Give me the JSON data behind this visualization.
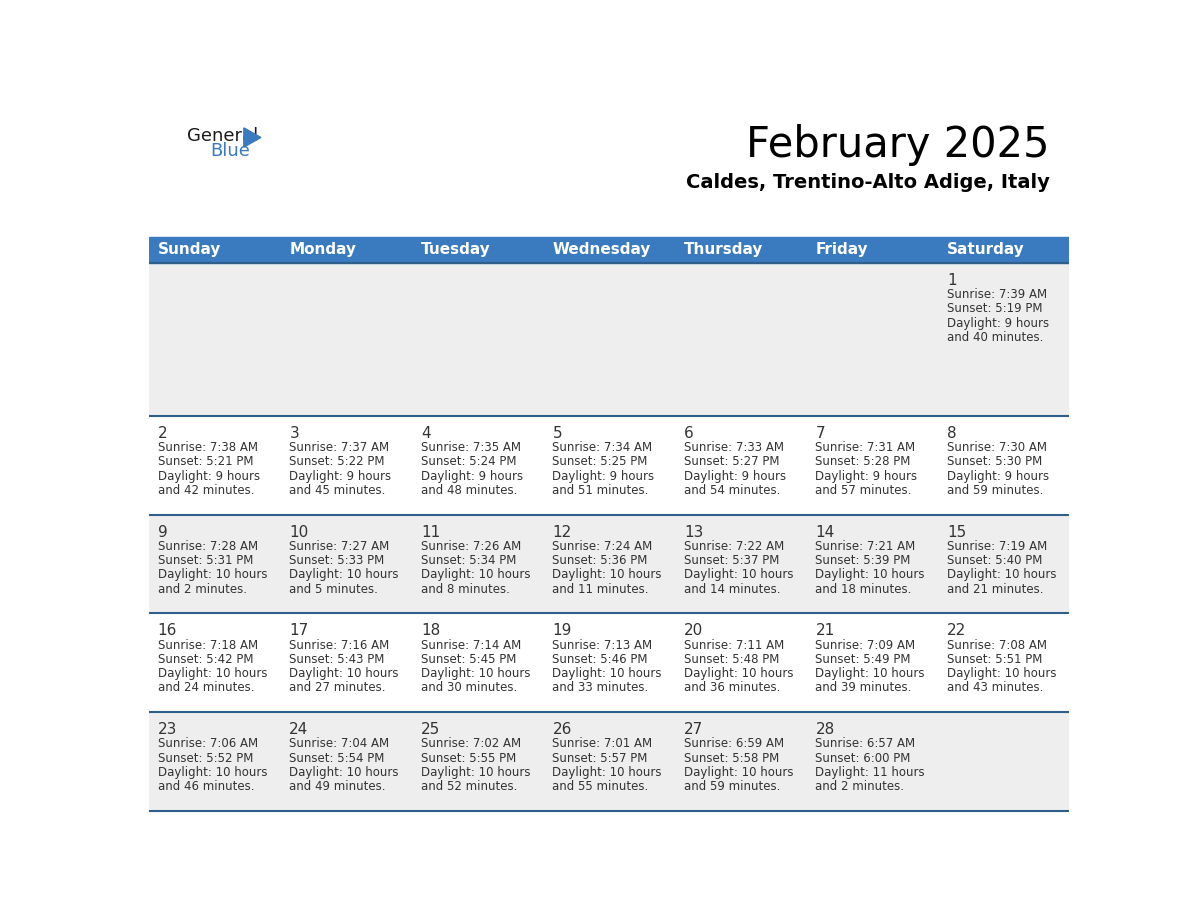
{
  "title": "February 2025",
  "subtitle": "Caldes, Trentino-Alto Adige, Italy",
  "header_bg": "#3a7abf",
  "header_text": "#ffffff",
  "cell_bg_row0": "#eeeeee",
  "cell_bg_row1": "#ffffff",
  "cell_bg_row2": "#eeeeee",
  "cell_bg_row3": "#ffffff",
  "cell_bg_row4": "#eeeeee",
  "day_headers": [
    "Sunday",
    "Monday",
    "Tuesday",
    "Wednesday",
    "Thursday",
    "Friday",
    "Saturday"
  ],
  "days": [
    {
      "day": 1,
      "col": 6,
      "row": 0,
      "sunrise": "7:39 AM",
      "sunset": "5:19 PM",
      "daylight_line1": "Daylight: 9 hours",
      "daylight_line2": "and 40 minutes."
    },
    {
      "day": 2,
      "col": 0,
      "row": 1,
      "sunrise": "7:38 AM",
      "sunset": "5:21 PM",
      "daylight_line1": "Daylight: 9 hours",
      "daylight_line2": "and 42 minutes."
    },
    {
      "day": 3,
      "col": 1,
      "row": 1,
      "sunrise": "7:37 AM",
      "sunset": "5:22 PM",
      "daylight_line1": "Daylight: 9 hours",
      "daylight_line2": "and 45 minutes."
    },
    {
      "day": 4,
      "col": 2,
      "row": 1,
      "sunrise": "7:35 AM",
      "sunset": "5:24 PM",
      "daylight_line1": "Daylight: 9 hours",
      "daylight_line2": "and 48 minutes."
    },
    {
      "day": 5,
      "col": 3,
      "row": 1,
      "sunrise": "7:34 AM",
      "sunset": "5:25 PM",
      "daylight_line1": "Daylight: 9 hours",
      "daylight_line2": "and 51 minutes."
    },
    {
      "day": 6,
      "col": 4,
      "row": 1,
      "sunrise": "7:33 AM",
      "sunset": "5:27 PM",
      "daylight_line1": "Daylight: 9 hours",
      "daylight_line2": "and 54 minutes."
    },
    {
      "day": 7,
      "col": 5,
      "row": 1,
      "sunrise": "7:31 AM",
      "sunset": "5:28 PM",
      "daylight_line1": "Daylight: 9 hours",
      "daylight_line2": "and 57 minutes."
    },
    {
      "day": 8,
      "col": 6,
      "row": 1,
      "sunrise": "7:30 AM",
      "sunset": "5:30 PM",
      "daylight_line1": "Daylight: 9 hours",
      "daylight_line2": "and 59 minutes."
    },
    {
      "day": 9,
      "col": 0,
      "row": 2,
      "sunrise": "7:28 AM",
      "sunset": "5:31 PM",
      "daylight_line1": "Daylight: 10 hours",
      "daylight_line2": "and 2 minutes."
    },
    {
      "day": 10,
      "col": 1,
      "row": 2,
      "sunrise": "7:27 AM",
      "sunset": "5:33 PM",
      "daylight_line1": "Daylight: 10 hours",
      "daylight_line2": "and 5 minutes."
    },
    {
      "day": 11,
      "col": 2,
      "row": 2,
      "sunrise": "7:26 AM",
      "sunset": "5:34 PM",
      "daylight_line1": "Daylight: 10 hours",
      "daylight_line2": "and 8 minutes."
    },
    {
      "day": 12,
      "col": 3,
      "row": 2,
      "sunrise": "7:24 AM",
      "sunset": "5:36 PM",
      "daylight_line1": "Daylight: 10 hours",
      "daylight_line2": "and 11 minutes."
    },
    {
      "day": 13,
      "col": 4,
      "row": 2,
      "sunrise": "7:22 AM",
      "sunset": "5:37 PM",
      "daylight_line1": "Daylight: 10 hours",
      "daylight_line2": "and 14 minutes."
    },
    {
      "day": 14,
      "col": 5,
      "row": 2,
      "sunrise": "7:21 AM",
      "sunset": "5:39 PM",
      "daylight_line1": "Daylight: 10 hours",
      "daylight_line2": "and 18 minutes."
    },
    {
      "day": 15,
      "col": 6,
      "row": 2,
      "sunrise": "7:19 AM",
      "sunset": "5:40 PM",
      "daylight_line1": "Daylight: 10 hours",
      "daylight_line2": "and 21 minutes."
    },
    {
      "day": 16,
      "col": 0,
      "row": 3,
      "sunrise": "7:18 AM",
      "sunset": "5:42 PM",
      "daylight_line1": "Daylight: 10 hours",
      "daylight_line2": "and 24 minutes."
    },
    {
      "day": 17,
      "col": 1,
      "row": 3,
      "sunrise": "7:16 AM",
      "sunset": "5:43 PM",
      "daylight_line1": "Daylight: 10 hours",
      "daylight_line2": "and 27 minutes."
    },
    {
      "day": 18,
      "col": 2,
      "row": 3,
      "sunrise": "7:14 AM",
      "sunset": "5:45 PM",
      "daylight_line1": "Daylight: 10 hours",
      "daylight_line2": "and 30 minutes."
    },
    {
      "day": 19,
      "col": 3,
      "row": 3,
      "sunrise": "7:13 AM",
      "sunset": "5:46 PM",
      "daylight_line1": "Daylight: 10 hours",
      "daylight_line2": "and 33 minutes."
    },
    {
      "day": 20,
      "col": 4,
      "row": 3,
      "sunrise": "7:11 AM",
      "sunset": "5:48 PM",
      "daylight_line1": "Daylight: 10 hours",
      "daylight_line2": "and 36 minutes."
    },
    {
      "day": 21,
      "col": 5,
      "row": 3,
      "sunrise": "7:09 AM",
      "sunset": "5:49 PM",
      "daylight_line1": "Daylight: 10 hours",
      "daylight_line2": "and 39 minutes."
    },
    {
      "day": 22,
      "col": 6,
      "row": 3,
      "sunrise": "7:08 AM",
      "sunset": "5:51 PM",
      "daylight_line1": "Daylight: 10 hours",
      "daylight_line2": "and 43 minutes."
    },
    {
      "day": 23,
      "col": 0,
      "row": 4,
      "sunrise": "7:06 AM",
      "sunset": "5:52 PM",
      "daylight_line1": "Daylight: 10 hours",
      "daylight_line2": "and 46 minutes."
    },
    {
      "day": 24,
      "col": 1,
      "row": 4,
      "sunrise": "7:04 AM",
      "sunset": "5:54 PM",
      "daylight_line1": "Daylight: 10 hours",
      "daylight_line2": "and 49 minutes."
    },
    {
      "day": 25,
      "col": 2,
      "row": 4,
      "sunrise": "7:02 AM",
      "sunset": "5:55 PM",
      "daylight_line1": "Daylight: 10 hours",
      "daylight_line2": "and 52 minutes."
    },
    {
      "day": 26,
      "col": 3,
      "row": 4,
      "sunrise": "7:01 AM",
      "sunset": "5:57 PM",
      "daylight_line1": "Daylight: 10 hours",
      "daylight_line2": "and 55 minutes."
    },
    {
      "day": 27,
      "col": 4,
      "row": 4,
      "sunrise": "6:59 AM",
      "sunset": "5:58 PM",
      "daylight_line1": "Daylight: 10 hours",
      "daylight_line2": "and 59 minutes."
    },
    {
      "day": 28,
      "col": 5,
      "row": 4,
      "sunrise": "6:57 AM",
      "sunset": "6:00 PM",
      "daylight_line1": "Daylight: 11 hours",
      "daylight_line2": "and 2 minutes."
    }
  ],
  "n_rows": 5,
  "n_cols": 7,
  "divider_color": "#2e5f8a",
  "text_color": "#333333",
  "logo_general_color": "#1a1a1a",
  "logo_blue_color": "#3a7abf",
  "header_fontsize": 11,
  "daynum_fontsize": 11,
  "info_fontsize": 8.5,
  "title_fontsize": 30,
  "subtitle_fontsize": 14
}
